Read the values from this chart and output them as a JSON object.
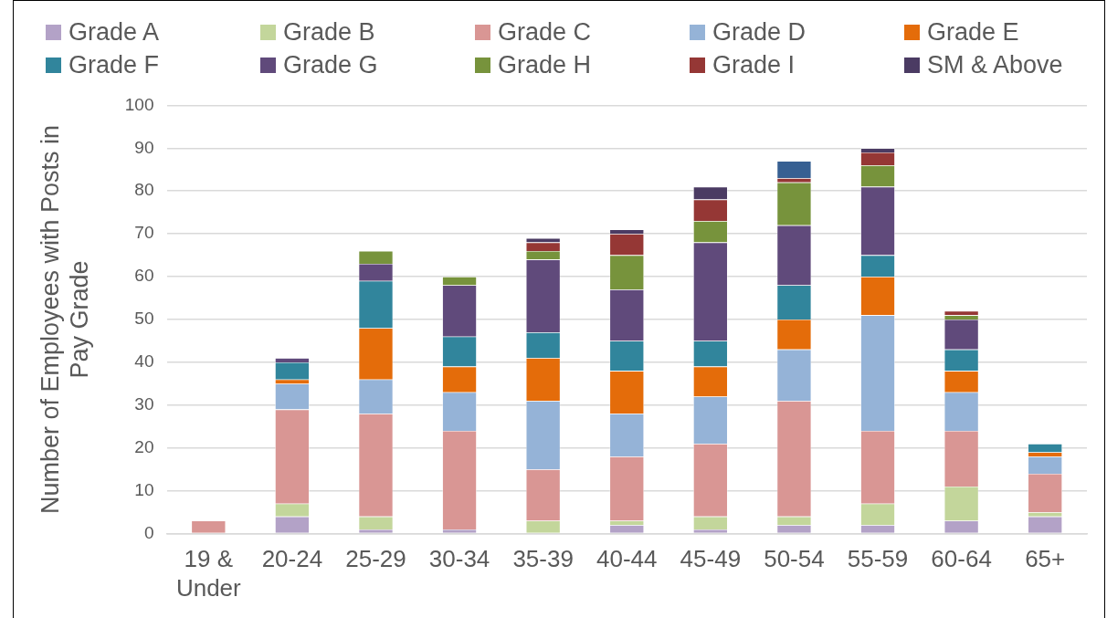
{
  "chart_data": {
    "type": "bar",
    "stacked": true,
    "ylabel": "Number of Employees with Posts in Pay Grade",
    "categories": [
      "19 & Under",
      "20-24",
      "25-29",
      "30-34",
      "35-39",
      "40-44",
      "45-49",
      "50-54",
      "55-59",
      "60-64",
      "65+"
    ],
    "series": [
      {
        "name": "Grade A",
        "color": "#b3a2c7",
        "values": [
          0,
          4,
          1,
          1,
          0,
          2,
          1,
          2,
          2,
          3,
          4
        ]
      },
      {
        "name": "Grade B",
        "color": "#c3d69b",
        "values": [
          0,
          3,
          3,
          0,
          3,
          1,
          3,
          2,
          5,
          8,
          1
        ]
      },
      {
        "name": "Grade C",
        "color": "#d99694",
        "values": [
          3,
          22,
          24,
          23,
          12,
          15,
          17,
          27,
          17,
          13,
          9
        ]
      },
      {
        "name": "Grade D",
        "color": "#95b3d7",
        "values": [
          0,
          6,
          8,
          9,
          16,
          10,
          11,
          12,
          27,
          9,
          4
        ]
      },
      {
        "name": "Grade E",
        "color": "#e46c0a",
        "values": [
          0,
          1,
          12,
          6,
          10,
          10,
          7,
          7,
          9,
          5,
          1
        ]
      },
      {
        "name": "Grade F",
        "color": "#31859c",
        "values": [
          0,
          4,
          11,
          7,
          6,
          7,
          6,
          8,
          5,
          5,
          2
        ]
      },
      {
        "name": "Grade G",
        "color": "#604a7b",
        "values": [
          0,
          1,
          4,
          12,
          17,
          12,
          23,
          14,
          16,
          7,
          0
        ]
      },
      {
        "name": "Grade H",
        "color": "#77933c",
        "values": [
          0,
          0,
          3,
          2,
          2,
          8,
          5,
          10,
          5,
          1,
          0
        ]
      },
      {
        "name": "Grade I",
        "color": "#953735",
        "values": [
          0,
          0,
          0,
          0,
          2,
          5,
          5,
          1,
          3,
          1,
          0
        ]
      },
      {
        "name": "SM & Above",
        "color": "#4b3b63",
        "values": [
          0,
          0,
          0,
          0,
          1,
          1,
          3,
          0,
          1,
          0,
          0
        ]
      },
      {
        "color": "#376092",
        "values": [
          0,
          0,
          0,
          0,
          0,
          0,
          0,
          4,
          0,
          0,
          0
        ]
      }
    ],
    "ylim": [
      0,
      100
    ],
    "yticks": [
      0,
      10,
      20,
      30,
      40,
      50,
      60,
      70,
      80,
      90,
      100
    ],
    "grid": "y",
    "legend": "top"
  }
}
